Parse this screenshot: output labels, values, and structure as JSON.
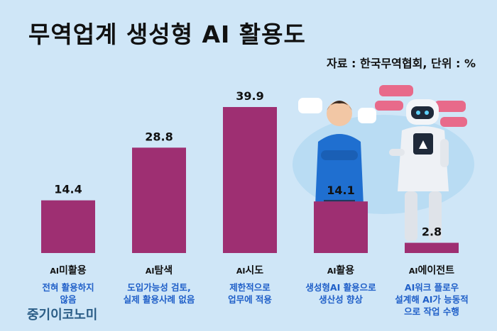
{
  "title": "무역업계 생성형 AI 활용도",
  "source": "자료 : 한국무역협회, 단위 : %",
  "brand": "중기이코노미",
  "colors": {
    "bar": "#9e2f72",
    "background": "#cfe6f7",
    "desc_text": "#1f5fc8"
  },
  "chart_data": {
    "type": "bar",
    "title": "무역업계 생성형 AI 활용도",
    "unit": "%",
    "categories": [
      "AI미활용",
      "AI탐색",
      "AI시도",
      "AI활용",
      "AI에이전트"
    ],
    "descriptions": [
      [
        "전혀 활용하지",
        "않음"
      ],
      [
        "도입가능성 검토,",
        "실제 활용사례 없음"
      ],
      [
        "제한적으로",
        "업무에 적용"
      ],
      [
        "생성형AI 활용으로",
        "생산성 향상"
      ],
      [
        "AI워크 플로우",
        "설계해 AI가 능동적",
        "으로 작업 수행"
      ]
    ],
    "values": [
      14.4,
      28.8,
      39.9,
      14.1,
      2.8
    ],
    "value_labels": [
      "14.4",
      "28.8",
      "39.9",
      "14.1",
      "2.8"
    ],
    "ylim": [
      0,
      39.9
    ],
    "grid": false,
    "legend": "none"
  }
}
